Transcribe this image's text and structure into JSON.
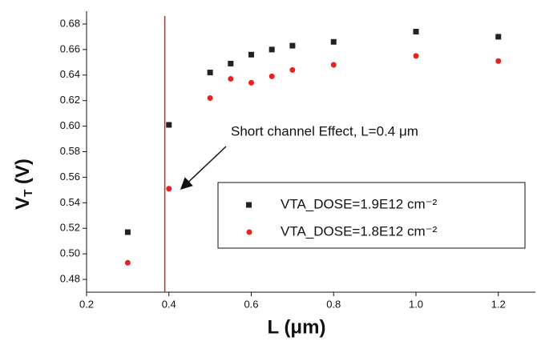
{
  "chart_data": {
    "type": "scatter",
    "xlabel": "L (μm)",
    "ylabel": "V",
    "ylabel_sub": "T",
    "ylabel_unit": " (V)",
    "annotation": "Short channel Effect, L=0.4 μm",
    "vline": 0.39,
    "vline_color": "#b03030",
    "xlim": [
      0.2,
      1.29
    ],
    "ylim": [
      0.47,
      0.69
    ],
    "xticks": [
      0.2,
      0.4,
      0.6,
      0.8,
      {
        "value": 1.0,
        "label": "1.0"
      },
      1.2
    ],
    "yticks": [
      0.48,
      {
        "value": 0.5,
        "label": "0.50"
      },
      0.52,
      0.54,
      0.56,
      0.58,
      {
        "value": 0.6,
        "label": "0.60"
      },
      0.62,
      0.64,
      0.66,
      0.68
    ],
    "series": [
      {
        "name": "VTA_DOSE=1.9E12 cm⁻²",
        "color": "#222222",
        "marker": "square",
        "x": [
          0.3,
          0.4,
          0.5,
          0.55,
          0.6,
          0.65,
          0.7,
          0.8,
          1.0,
          1.2
        ],
        "values": [
          0.517,
          0.601,
          0.642,
          0.649,
          0.656,
          0.66,
          0.663,
          0.666,
          0.674,
          0.67
        ]
      },
      {
        "name": "VTA_DOSE=1.8E12 cm⁻²",
        "color": "#e82020",
        "marker": "circle",
        "x": [
          0.3,
          0.4,
          0.5,
          0.55,
          0.6,
          0.65,
          0.7,
          0.8,
          1.0,
          1.2
        ],
        "values": [
          0.493,
          0.551,
          0.622,
          0.637,
          0.634,
          0.639,
          0.644,
          0.648,
          0.655,
          0.651
        ]
      }
    ]
  }
}
